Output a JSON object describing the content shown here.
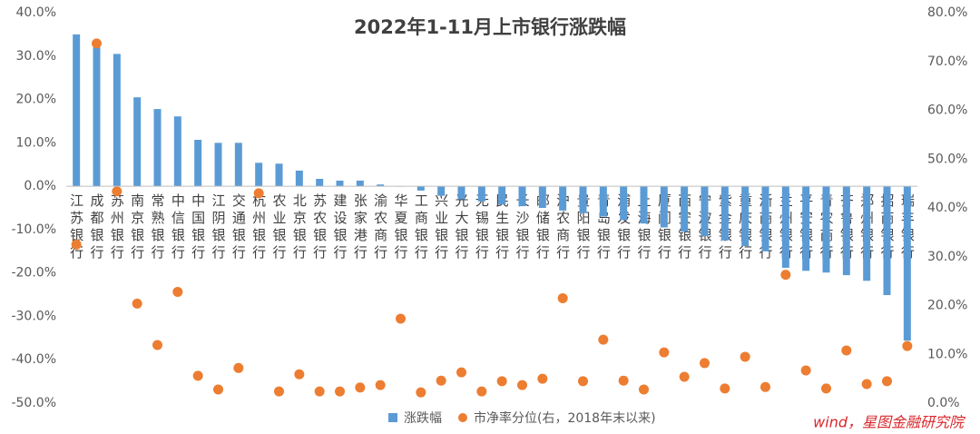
{
  "chart_data": {
    "type": "bar",
    "title": "2022年1-11月上市银行涨跌幅",
    "categories": [
      "江苏银行",
      "成都银行",
      "苏州银行",
      "南京银行",
      "常熟银行",
      "中信银行",
      "中国银行",
      "江阴银行",
      "交通银行",
      "杭州银行",
      "农业银行",
      "北京银行",
      "苏农银行",
      "建设银行",
      "张家港行",
      "渝农商行",
      "华夏银行",
      "工商银行",
      "兴业银行",
      "光大银行",
      "无锡银行",
      "民生银行",
      "长沙银行",
      "邮储银行",
      "沪农商行",
      "贵阳银行",
      "青岛银行",
      "浦发银行",
      "上海银行",
      "厦门银行",
      "西安银行",
      "宁波银行",
      "紫金银行",
      "重庆银行",
      "浙商银行",
      "兰州银行",
      "平安银行",
      "青农商行",
      "齐鲁银行",
      "郑州银行",
      "招商银行",
      "瑞丰银行"
    ],
    "series": [
      {
        "name": "涨跌幅",
        "color": "#5b9bd5",
        "type": "bar",
        "values": [
          35.0,
          32.0,
          30.5,
          20.5,
          17.8,
          16.1,
          10.7,
          10.0,
          10.0,
          5.4,
          5.2,
          3.6,
          1.7,
          1.3,
          1.3,
          0.4,
          -0.1,
          -1.0,
          -2.2,
          -3.0,
          -3.5,
          -4.2,
          -4.6,
          -5.0,
          -5.6,
          -6.2,
          -7.0,
          -7.8,
          -8.6,
          -9.5,
          -10.5,
          -11.5,
          -12.5,
          -13.8,
          -15.0,
          -18.8,
          -19.5,
          -19.9,
          -20.5,
          -21.8,
          -25.1,
          -35.6
        ]
      },
      {
        "name": "市净率分位(右，2018年末以来)",
        "color": "#ed7d31",
        "type": "scatter",
        "axis": "y2",
        "values": [
          32.5,
          73.7,
          43.4,
          20.4,
          11.9,
          22.8,
          5.6,
          2.8,
          7.2,
          43.0,
          2.4,
          5.9,
          2.4,
          2.4,
          3.2,
          3.7,
          17.3,
          2.2,
          4.6,
          6.3,
          2.4,
          4.5,
          3.7,
          5.0,
          21.5,
          4.5,
          13.0,
          4.6,
          2.8,
          10.4,
          5.4,
          8.2,
          3.0,
          9.5,
          3.3,
          26.3,
          6.7,
          3.0,
          10.8,
          3.9,
          4.5,
          11.7
        ]
      }
    ],
    "ylim": [
      -50,
      40
    ],
    "yticks": [
      {
        "value": -50,
        "label": "-50.0%"
      },
      {
        "value": -40,
        "label": "-40.0%"
      },
      {
        "value": -30,
        "label": "-30.0%"
      },
      {
        "value": -20,
        "label": "-20.0%"
      },
      {
        "value": -10,
        "label": "-10.0%"
      },
      {
        "value": 0,
        "label": "0.0%"
      },
      {
        "value": 10,
        "label": "10.0%"
      },
      {
        "value": 20,
        "label": "20.0%"
      },
      {
        "value": 30,
        "label": "30.0%"
      },
      {
        "value": 40,
        "label": "40.0%"
      }
    ],
    "y2lim": [
      0,
      80
    ],
    "y2ticks": [
      {
        "value": 0,
        "label": "0.0%"
      },
      {
        "value": 10,
        "label": "10.0%"
      },
      {
        "value": 20,
        "label": "20.0%"
      },
      {
        "value": 30,
        "label": "30.0%"
      },
      {
        "value": 40,
        "label": "40.0%"
      },
      {
        "value": 50,
        "label": "50.0%"
      },
      {
        "value": 60,
        "label": "60.0%"
      },
      {
        "value": 70,
        "label": "70.0%"
      },
      {
        "value": 80,
        "label": "80.0%"
      }
    ],
    "grid": false,
    "legend": "bottom",
    "watermark": "wind，星图金融研究院"
  }
}
